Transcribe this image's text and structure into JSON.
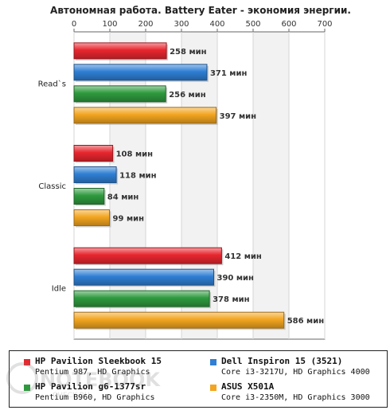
{
  "chart_data": {
    "type": "bar",
    "orientation": "horizontal",
    "title": "Автономная работа. Battery Eater - экономия энергии.",
    "xlim": [
      0,
      700
    ],
    "xticks": [
      "0",
      "100",
      "200",
      "300",
      "400",
      "500",
      "600",
      "700"
    ],
    "grid": true,
    "value_suffix": " мин",
    "categories": [
      "Read`s",
      "Classic",
      "Idle"
    ],
    "series": [
      {
        "name": "HP Pavilion Sleekbook 15",
        "color": "#e8262e",
        "values": [
          258,
          108,
          412
        ]
      },
      {
        "name": "Dell Inspiron 15 (3521)",
        "color": "#2f7fd4",
        "values": [
          371,
          118,
          390
        ]
      },
      {
        "name": "HP Pavilion g6-1377sr",
        "color": "#2e9a3e",
        "values": [
          256,
          84,
          378
        ]
      },
      {
        "name": "ASUS X501A",
        "color": "#f3a520",
        "values": [
          397,
          99,
          586
        ]
      }
    ]
  },
  "legend": {
    "items": [
      {
        "name": "HP Pavilion Sleekbook 15",
        "sub": "Pentium 987, HD Graphics",
        "color": "#e8262e"
      },
      {
        "name": "Dell Inspiron 15 (3521)",
        "sub": "Core i3-3217U, HD Graphics 4000",
        "color": "#2f7fd4"
      },
      {
        "name": "HP Pavilion g6-1377sr",
        "sub": "Pentium B960, HD Graphics",
        "color": "#2e9a3e"
      },
      {
        "name": "ASUS X501A",
        "sub": "Core i3-2350M, HD Graphics 3000",
        "color": "#f3a520"
      }
    ]
  },
  "watermark": {
    "text": "NOTEBOOK",
    "sub": "CHECK.RU"
  }
}
